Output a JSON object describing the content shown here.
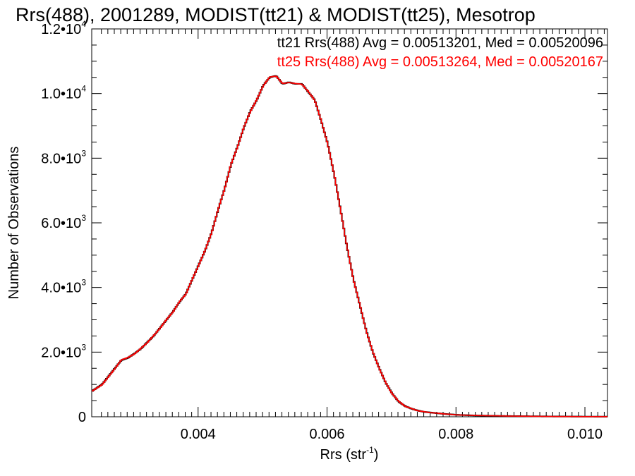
{
  "chart_data": {
    "type": "line",
    "title": "Rrs(488), 2001289, MODIST(tt21) & MODIST(tt25), Mesotrop",
    "xlabel": "Rrs (str",
    "xlabel_sup": "-1",
    "xlabel_end": ")",
    "ylabel": "Number of Observations",
    "xlim": [
      0.00235,
      0.01035
    ],
    "ylim": [
      0,
      12000
    ],
    "x_ticks": [
      {
        "value": 0.004,
        "label": "0.004"
      },
      {
        "value": 0.006,
        "label": "0.006"
      },
      {
        "value": 0.008,
        "label": "0.008"
      },
      {
        "value": 0.01,
        "label": "0.010"
      }
    ],
    "y_ticks": [
      {
        "value": 0,
        "label": "0",
        "sup": ""
      },
      {
        "value": 2000,
        "label": "2.0•10",
        "sup": "3"
      },
      {
        "value": 4000,
        "label": "4.0•10",
        "sup": "3"
      },
      {
        "value": 6000,
        "label": "6.0•10",
        "sup": "3"
      },
      {
        "value": 8000,
        "label": "8.0•10",
        "sup": "3"
      },
      {
        "value": 10000,
        "label": "1.0•10",
        "sup": "4"
      },
      {
        "value": 12000,
        "label": "1.2•10",
        "sup": "4"
      }
    ],
    "grid": false,
    "legend_position": "top-right",
    "annotations": [
      {
        "text": "tt21 Rrs(488) Avg = 0.00513201, Med = 0.00520096",
        "color": "#000000"
      },
      {
        "text": "tt25 Rrs(488) Avg = 0.00513264, Med = 0.00520167",
        "color": "#ff0000"
      }
    ],
    "series": [
      {
        "color": "#000000",
        "points": [
          [
            0.00235,
            800
          ],
          [
            0.0025,
            1000
          ],
          [
            0.0026,
            1250
          ],
          [
            0.0027,
            1500
          ],
          [
            0.0028,
            1750
          ],
          [
            0.0029,
            1820
          ],
          [
            0.003,
            1950
          ],
          [
            0.0031,
            2100
          ],
          [
            0.0032,
            2300
          ],
          [
            0.0033,
            2500
          ],
          [
            0.0034,
            2750
          ],
          [
            0.0035,
            3000
          ],
          [
            0.0036,
            3250
          ],
          [
            0.0037,
            3550
          ],
          [
            0.0038,
            3800
          ],
          [
            0.0039,
            4250
          ],
          [
            0.004,
            4700
          ],
          [
            0.0041,
            5150
          ],
          [
            0.0042,
            5700
          ],
          [
            0.0043,
            6400
          ],
          [
            0.0044,
            7050
          ],
          [
            0.0045,
            7800
          ],
          [
            0.0046,
            8350
          ],
          [
            0.0047,
            8950
          ],
          [
            0.0048,
            9450
          ],
          [
            0.0049,
            9800
          ],
          [
            0.005,
            10250
          ],
          [
            0.0051,
            10500
          ],
          [
            0.0052,
            10550
          ],
          [
            0.0053,
            10300
          ],
          [
            0.0054,
            10350
          ],
          [
            0.0055,
            10300
          ],
          [
            0.0056,
            10300
          ],
          [
            0.0057,
            10050
          ],
          [
            0.0058,
            9800
          ],
          [
            0.0059,
            9150
          ],
          [
            0.006,
            8450
          ],
          [
            0.0061,
            7500
          ],
          [
            0.0062,
            6400
          ],
          [
            0.0063,
            5250
          ],
          [
            0.0064,
            4250
          ],
          [
            0.0065,
            3450
          ],
          [
            0.0066,
            2650
          ],
          [
            0.0067,
            2000
          ],
          [
            0.0068,
            1500
          ],
          [
            0.0069,
            1050
          ],
          [
            0.007,
            720
          ],
          [
            0.0071,
            470
          ],
          [
            0.0072,
            330
          ],
          [
            0.0073,
            250
          ],
          [
            0.0074,
            190
          ],
          [
            0.0075,
            150
          ],
          [
            0.0076,
            130
          ],
          [
            0.0077,
            110
          ],
          [
            0.0078,
            90
          ],
          [
            0.0079,
            75
          ],
          [
            0.008,
            60
          ],
          [
            0.0082,
            45
          ],
          [
            0.0084,
            35
          ],
          [
            0.0086,
            28
          ],
          [
            0.0088,
            22
          ],
          [
            0.009,
            18
          ],
          [
            0.0092,
            14
          ],
          [
            0.0094,
            10
          ],
          [
            0.0096,
            8
          ],
          [
            0.0098,
            6
          ],
          [
            0.01,
            4
          ],
          [
            0.01035,
            3
          ]
        ]
      },
      {
        "color": "#ff0000",
        "points": [
          [
            0.00235,
            800
          ],
          [
            0.0025,
            990
          ],
          [
            0.0026,
            1240
          ],
          [
            0.0027,
            1490
          ],
          [
            0.0028,
            1760
          ],
          [
            0.0029,
            1830
          ],
          [
            0.003,
            1940
          ],
          [
            0.0031,
            2110
          ],
          [
            0.0032,
            2290
          ],
          [
            0.0033,
            2510
          ],
          [
            0.0034,
            2740
          ],
          [
            0.0035,
            3010
          ],
          [
            0.0036,
            3240
          ],
          [
            0.0037,
            3560
          ],
          [
            0.0038,
            3790
          ],
          [
            0.0039,
            4260
          ],
          [
            0.004,
            4690
          ],
          [
            0.0041,
            5160
          ],
          [
            0.0042,
            5690
          ],
          [
            0.0043,
            6410
          ],
          [
            0.0044,
            7040
          ],
          [
            0.0045,
            7810
          ],
          [
            0.0046,
            8340
          ],
          [
            0.0047,
            8960
          ],
          [
            0.0048,
            9440
          ],
          [
            0.0049,
            9810
          ],
          [
            0.005,
            10240
          ],
          [
            0.0051,
            10510
          ],
          [
            0.0052,
            10540
          ],
          [
            0.0053,
            10310
          ],
          [
            0.0054,
            10340
          ],
          [
            0.0055,
            10310
          ],
          [
            0.0056,
            10290
          ],
          [
            0.0057,
            10060
          ],
          [
            0.0058,
            9790
          ],
          [
            0.0059,
            9160
          ],
          [
            0.006,
            8440
          ],
          [
            0.0061,
            7510
          ],
          [
            0.0062,
            6390
          ],
          [
            0.0063,
            5260
          ],
          [
            0.0064,
            4240
          ],
          [
            0.0065,
            3460
          ],
          [
            0.0066,
            2640
          ],
          [
            0.0067,
            2010
          ],
          [
            0.0068,
            1490
          ],
          [
            0.0069,
            1060
          ],
          [
            0.007,
            710
          ],
          [
            0.0071,
            480
          ],
          [
            0.0072,
            325
          ],
          [
            0.0073,
            255
          ],
          [
            0.0074,
            185
          ],
          [
            0.0075,
            155
          ],
          [
            0.0076,
            125
          ],
          [
            0.0077,
            112
          ],
          [
            0.0078,
            88
          ],
          [
            0.0079,
            76
          ],
          [
            0.008,
            58
          ],
          [
            0.0082,
            46
          ],
          [
            0.0084,
            34
          ],
          [
            0.0086,
            29
          ],
          [
            0.0088,
            21
          ],
          [
            0.009,
            18
          ],
          [
            0.0092,
            13
          ],
          [
            0.0094,
            10
          ],
          [
            0.0096,
            7
          ],
          [
            0.0098,
            6
          ],
          [
            0.01,
            4
          ],
          [
            0.01035,
            3
          ]
        ]
      }
    ]
  }
}
